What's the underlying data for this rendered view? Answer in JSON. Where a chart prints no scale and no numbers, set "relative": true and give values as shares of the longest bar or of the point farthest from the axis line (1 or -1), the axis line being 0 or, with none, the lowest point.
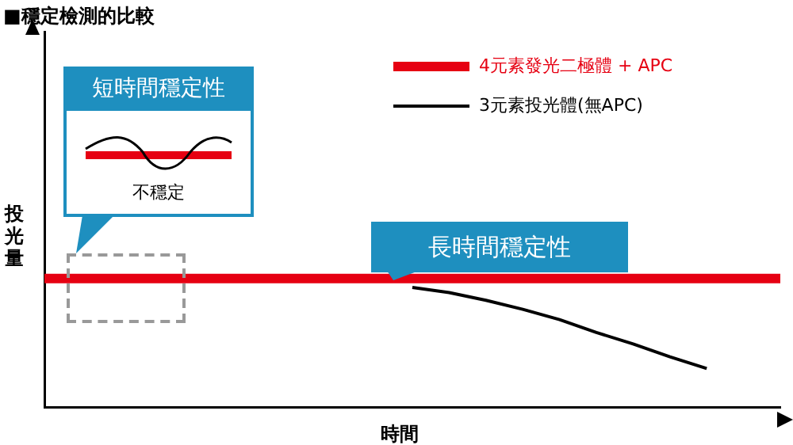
{
  "chart_data": {
    "type": "line",
    "title": "■穩定檢測的比較",
    "xlabel": "時間",
    "ylabel": "投光量",
    "relative": true,
    "legend": "top right",
    "marker": "none",
    "categories": [
      null,
      null,
      null,
      null,
      null,
      null,
      null,
      null,
      null,
      null,
      null,
      null,
      null,
      null,
      null,
      null,
      null,
      null,
      null,
      null,
      null
    ],
    "series": [
      {
        "name": "4元素發光二極體 + APC",
        "color": "#e60012",
        "values": [
          1,
          1,
          1,
          1,
          1,
          1,
          1,
          1,
          1,
          1,
          1,
          1,
          1,
          1,
          1,
          1,
          1,
          1,
          1,
          1,
          1
        ]
      },
      {
        "name": "3元素投光體(無APC)",
        "color": "#000000",
        "values": [
          null,
          null,
          null,
          null,
          null,
          null,
          null,
          null,
          null,
          null,
          0.93,
          0.89,
          0.83,
          0.76,
          0.68,
          0.58,
          0.49,
          0.39,
          0.3,
          null,
          null
        ]
      }
    ],
    "annotations": [
      "短時間穩定性",
      "不穩定",
      "長時間穩定性"
    ]
  }
}
